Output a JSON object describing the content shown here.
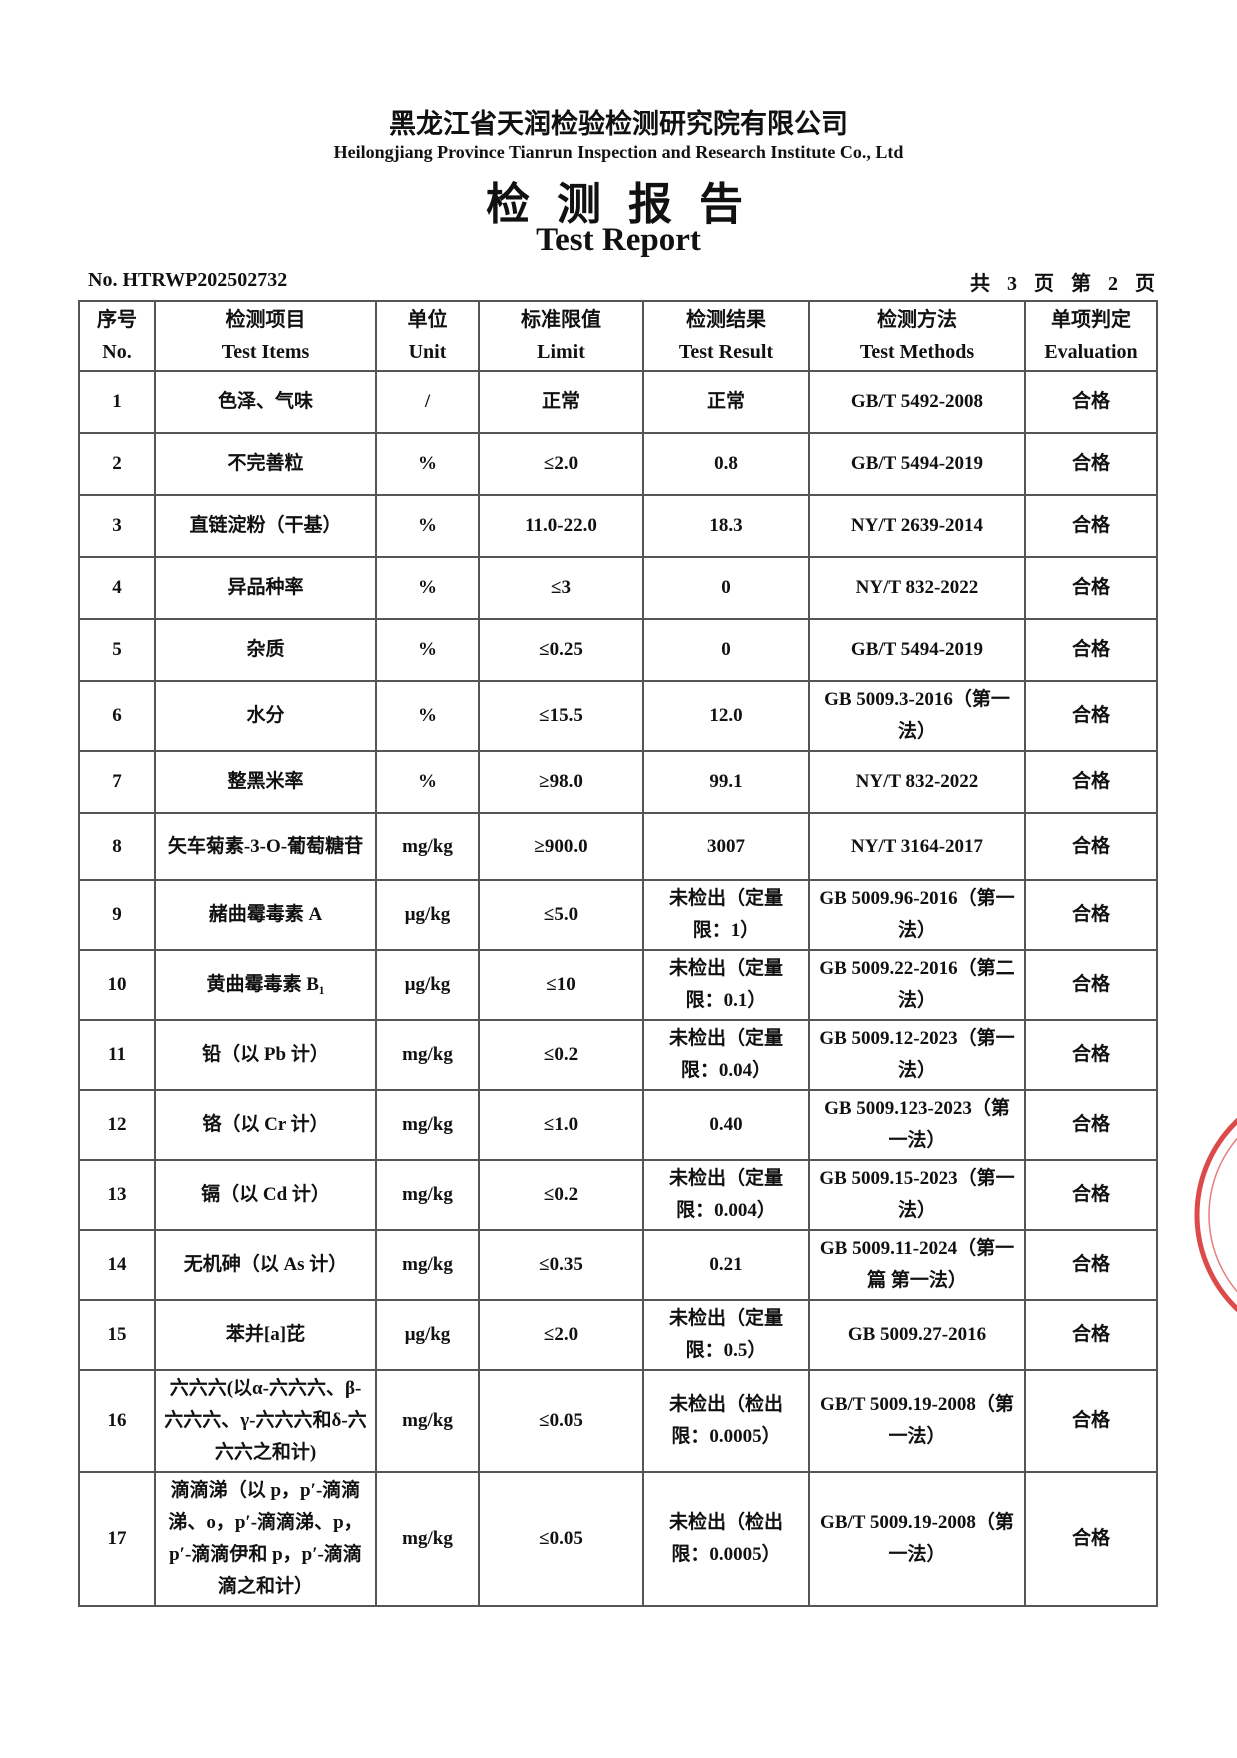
{
  "header": {
    "company_cn": "黑龙江省天润检验检测研究院有限公司",
    "company_en": "Heilongjiang Province Tianrun Inspection and Research Institute Co., Ltd",
    "title_cn": "检 测 报 告",
    "title_en": "Test Report",
    "report_no": "No. HTRWP202502732",
    "page_info": "共 3 页 第 2 页"
  },
  "table": {
    "columns": [
      {
        "cn": "序号",
        "en": "No."
      },
      {
        "cn": "检测项目",
        "en": "Test Items"
      },
      {
        "cn": "单位",
        "en": "Unit"
      },
      {
        "cn": "标准限值",
        "en": "Limit"
      },
      {
        "cn": "检测结果",
        "en": "Test Result"
      },
      {
        "cn": "检测方法",
        "en": "Test Methods"
      },
      {
        "cn": "单项判定",
        "en": "Evaluation"
      }
    ],
    "rows": [
      [
        "1",
        "色泽、气味",
        "/",
        "正常",
        "正常",
        "GB/T 5492-2008",
        "合格"
      ],
      [
        "2",
        "不完善粒",
        "%",
        "≤2.0",
        "0.8",
        "GB/T 5494-2019",
        "合格"
      ],
      [
        "3",
        "直链淀粉（干基）",
        "%",
        "11.0-22.0",
        "18.3",
        "NY/T 2639-2014",
        "合格"
      ],
      [
        "4",
        "异品种率",
        "%",
        "≤3",
        "0",
        "NY/T 832-2022",
        "合格"
      ],
      [
        "5",
        "杂质",
        "%",
        "≤0.25",
        "0",
        "GB/T 5494-2019",
        "合格"
      ],
      [
        "6",
        "水分",
        "%",
        "≤15.5",
        "12.0",
        "GB 5009.3-2016（第一法）",
        "合格"
      ],
      [
        "7",
        "整黑米率",
        "%",
        "≥98.0",
        "99.1",
        "NY/T 832-2022",
        "合格"
      ],
      [
        "8",
        "矢车菊素-3-O-葡萄糖苷",
        "mg/kg",
        "≥900.0",
        "3007",
        "NY/T 3164-2017",
        "合格"
      ],
      [
        "9",
        "赭曲霉毒素 A",
        "μg/kg",
        "≤5.0",
        "未检出（定量限：1）",
        "GB 5009.96-2016（第一法）",
        "合格"
      ],
      [
        "10",
        "黄曲霉毒素 B₁",
        "μg/kg",
        "≤10",
        "未检出（定量限：0.1）",
        "GB 5009.22-2016（第二法）",
        "合格"
      ],
      [
        "11",
        "铅（以 Pb 计）",
        "mg/kg",
        "≤0.2",
        "未检出（定量限：0.04）",
        "GB 5009.12-2023（第一法）",
        "合格"
      ],
      [
        "12",
        "铬（以 Cr 计）",
        "mg/kg",
        "≤1.0",
        "0.40",
        "GB 5009.123-2023（第一法）",
        "合格"
      ],
      [
        "13",
        "镉（以 Cd 计）",
        "mg/kg",
        "≤0.2",
        "未检出（定量限：0.004）",
        "GB 5009.15-2023（第一法）",
        "合格"
      ],
      [
        "14",
        "无机砷（以 As 计）",
        "mg/kg",
        "≤0.35",
        "0.21",
        "GB 5009.11-2024（第一篇 第一法）",
        "合格"
      ],
      [
        "15",
        "苯并[a]芘",
        "μg/kg",
        "≤2.0",
        "未检出（定量限：0.5）",
        "GB 5009.27-2016",
        "合格"
      ],
      [
        "16",
        "六六六(以α-六六六、β-六六六、γ-六六六和δ-六六六之和计)",
        "mg/kg",
        "≤0.05",
        "未检出（检出限：0.0005）",
        "GB/T 5009.19-2008（第一法）",
        "合格"
      ],
      [
        "17",
        "滴滴涕（以 p，p′-滴滴涕、o，p′-滴滴涕、p，p′-滴滴伊和 p，p′-滴滴滴之和计）",
        "mg/kg",
        "≤0.05",
        "未检出（检出限：0.0005）",
        "GB/T 5009.19-2008（第一法）",
        "合格"
      ]
    ]
  }
}
